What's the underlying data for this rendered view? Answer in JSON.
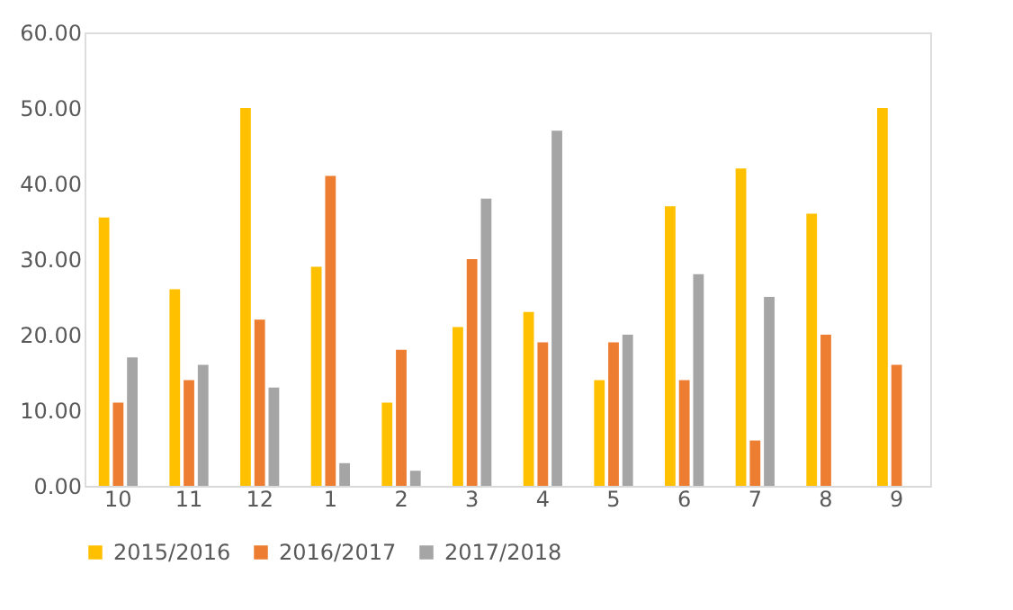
{
  "chart_data": {
    "type": "bar",
    "categories": [
      "10",
      "11",
      "12",
      "1",
      "2",
      "3",
      "4",
      "5",
      "6",
      "7",
      "8",
      "9"
    ],
    "series": [
      {
        "name": "2015/2016",
        "color": "#ffc000",
        "values": [
          35.5,
          26,
          50,
          29,
          11,
          21,
          23,
          14,
          37,
          42,
          36,
          50
        ]
      },
      {
        "name": "2016/2017",
        "color": "#ed7d31",
        "values": [
          11,
          14,
          22,
          41,
          18,
          30,
          19,
          19,
          14,
          6,
          20,
          16
        ]
      },
      {
        "name": "2017/2018",
        "color": "#a5a5a5",
        "values": [
          17,
          16,
          13,
          3,
          2,
          38,
          47,
          20,
          28,
          25,
          null,
          null
        ]
      }
    ],
    "ylim": [
      0,
      60
    ],
    "yticks": [
      {
        "value": 0,
        "label": "0.00"
      },
      {
        "value": 10,
        "label": "10.00"
      },
      {
        "value": 20,
        "label": "20.00"
      },
      {
        "value": 30,
        "label": "30.00"
      },
      {
        "value": 40,
        "label": "40.00"
      },
      {
        "value": 50,
        "label": "50.00"
      },
      {
        "value": 60,
        "label": "60.00"
      }
    ],
    "grid": false,
    "legend": "bottom"
  }
}
